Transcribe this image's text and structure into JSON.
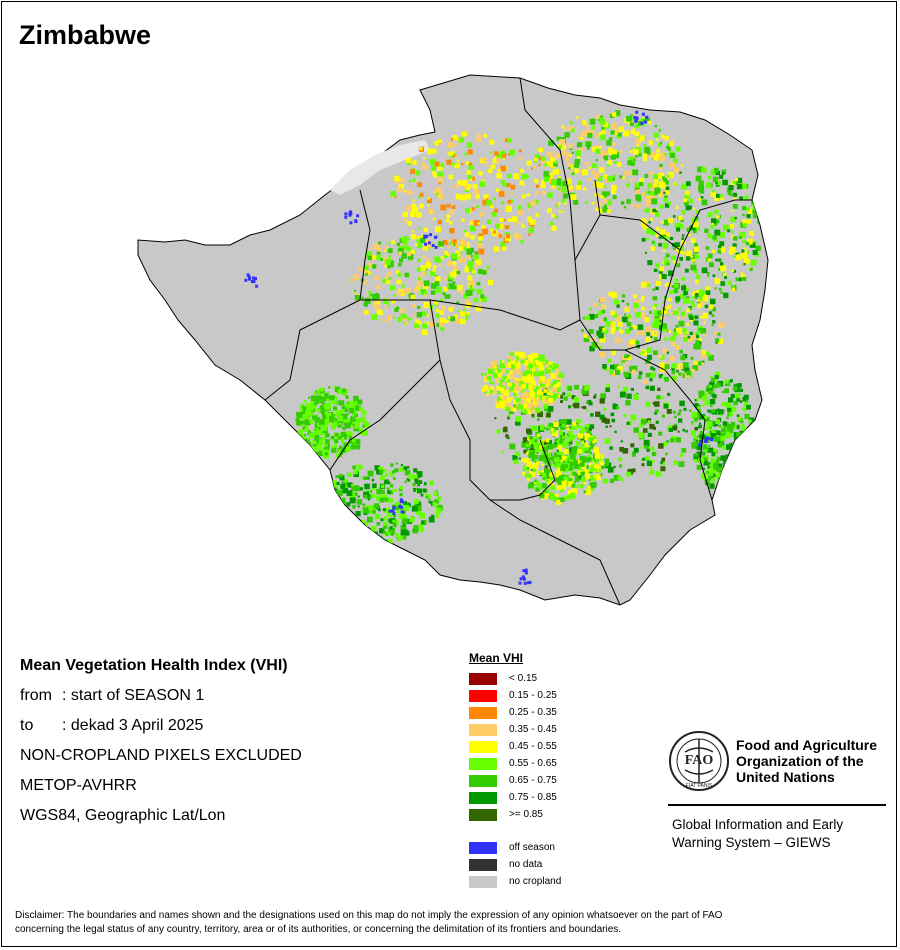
{
  "title": "Zimbabwe",
  "info": {
    "heading": "Mean Vegetation Health Index (VHI)",
    "from_label": "from",
    "from_value": ": start of SEASON 1",
    "to_label": "to",
    "to_value": ": dekad 3 April 2025",
    "line3": "NON-CROPLAND PIXELS EXCLUDED",
    "line4": "METOP-AVHRR",
    "line5": "WGS84, Geographic Lat/Lon"
  },
  "legend": {
    "title": "Mean VHI",
    "classes": [
      {
        "label": "< 0.15",
        "color": "#990000"
      },
      {
        "label": "0.15 - 0.25",
        "color": "#ff0000"
      },
      {
        "label": "0.25 - 0.35",
        "color": "#ff8800"
      },
      {
        "label": "0.35 - 0.45",
        "color": "#ffcc66"
      },
      {
        "label": "0.45 - 0.55",
        "color": "#ffff00"
      },
      {
        "label": "0.55 - 0.65",
        "color": "#66ff00"
      },
      {
        "label": "0.65 - 0.75",
        "color": "#33cc00"
      },
      {
        "label": "0.75 - 0.85",
        "color": "#009900"
      },
      {
        "label": ">= 0.85",
        "color": "#336600"
      }
    ],
    "special": [
      {
        "label": "off season",
        "color": "#3333ff"
      },
      {
        "label": "no data",
        "color": "#333333"
      },
      {
        "label": "no cropland",
        "color": "#c8c8c8"
      }
    ]
  },
  "fao": {
    "logo_text": "FAO",
    "logo_motto": "FIAT PANIS",
    "org_line1": "Food and Agriculture",
    "org_line2": "Organization of the",
    "org_line3": "United Nations",
    "giews_line1": "Global Information and Early",
    "giews_line2": "Warning System – GIEWS"
  },
  "disclaimer_line1": "Disclaimer: The boundaries and names shown and the designations used on this map do not imply the expression of any opinion whatsoever on the part of FAO",
  "disclaimer_line2": "concerning the legal status of any country, territory, area or of its authorities, or concerning the delimitation of its frontiers and boundaries."
}
